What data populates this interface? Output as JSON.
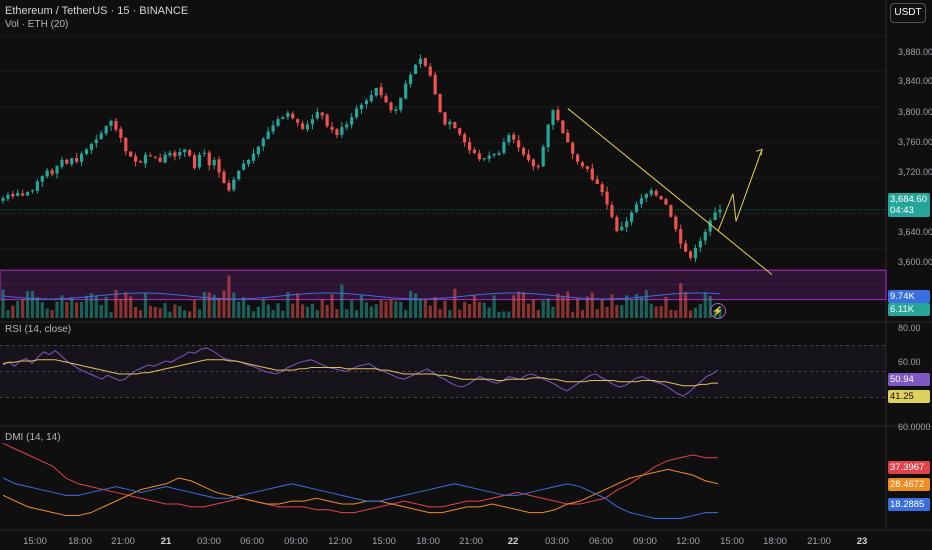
{
  "header": {
    "symbol_line": "Ethereum / TetherUS · 15 · BINANCE",
    "volume_label": "Vol · ETH (20)",
    "currency_button": "USDT"
  },
  "price_axis": {
    "labels": [
      "3,880.00",
      "3,840.00",
      "3,800.00",
      "3,760.00",
      "3,720.00",
      "3,640.00",
      "3,600.00"
    ],
    "current_price": "3,684.60",
    "countdown": "04:43",
    "vol_badge_1": "9.74K",
    "vol_badge_2": "6.11K"
  },
  "rsi": {
    "label": "RSI (14, close)",
    "axis_labels": [
      "80.00",
      "60.00"
    ],
    "value_badge": "50.94",
    "ma_badge": "41.25"
  },
  "dmi": {
    "label": "DMI (14, 14)",
    "axis_top": "60.0000",
    "plus_badge": "37.3967",
    "adx_badge": "28.4672",
    "minus_badge": "18.2885"
  },
  "time_axis": {
    "labels": [
      "15:00",
      "18:00",
      "21:00",
      "21",
      "03:00",
      "06:00",
      "09:00",
      "12:00",
      "15:00",
      "18:00",
      "21:00",
      "22",
      "03:00",
      "06:00",
      "09:00",
      "12:00",
      "15:00",
      "18:00",
      "21:00",
      "23"
    ]
  },
  "colors": {
    "up": "#26a69a",
    "down": "#ef5350",
    "support_zone": "#9c27b0",
    "trendline": "#e6d04a",
    "rsi_line": "#7e57c2",
    "rsi_ma": "#e0c060",
    "dmi_plus": "#e0424a",
    "dmi_adx": "#f08c1e",
    "dmi_minus": "#3a6fe0",
    "vol_ma": "#3a6fe0"
  },
  "chart_data": {
    "type": "candlestick",
    "symbol": "ETHUSDT",
    "interval": "15",
    "price_range": [
      3560,
      3920
    ],
    "support_zone": [
      3583,
      3616
    ],
    "trendline": [
      [
        3798,
        3611
      ]
    ],
    "projection_path": [
      3660,
      3702,
      3671,
      3752
    ],
    "closes": [
      3697,
      3701,
      3699,
      3703,
      3700,
      3704,
      3706,
      3716,
      3722,
      3728,
      3724,
      3733,
      3740,
      3736,
      3742,
      3738,
      3747,
      3752,
      3758,
      3763,
      3770,
      3778,
      3784,
      3774,
      3765,
      3750,
      3744,
      3738,
      3737,
      3746,
      3744,
      3743,
      3738,
      3746,
      3748,
      3744,
      3749,
      3752,
      3745,
      3731,
      3746,
      3748,
      3734,
      3740,
      3726,
      3714,
      3706,
      3718,
      3728,
      3736,
      3740,
      3747,
      3755,
      3764,
      3772,
      3779,
      3786,
      3788,
      3793,
      3787,
      3782,
      3775,
      3780,
      3786,
      3794,
      3790,
      3778,
      3774,
      3768,
      3777,
      3780,
      3788,
      3798,
      3802,
      3807,
      3813,
      3821,
      3813,
      3805,
      3796,
      3797,
      3810,
      3826,
      3836,
      3847,
      3854,
      3846,
      3835,
      3814,
      3794,
      3780,
      3783,
      3776,
      3769,
      3760,
      3751,
      3748,
      3741,
      3742,
      3745,
      3747,
      3748,
      3760,
      3768,
      3763,
      3754,
      3746,
      3740,
      3733,
      3733,
      3755,
      3780,
      3796,
      3785,
      3770,
      3760,
      3747,
      3738,
      3733,
      3730,
      3718,
      3713,
      3704,
      3690,
      3676,
      3660,
      3665,
      3671,
      3681,
      3690,
      3697,
      3702,
      3706,
      3700,
      3696,
      3690,
      3676,
      3662,
      3646,
      3637,
      3630,
      3641,
      3649,
      3659,
      3672,
      3681,
      3684
    ],
    "rsi": [
      55,
      57,
      54,
      58,
      60,
      56,
      61,
      65,
      63,
      66,
      62,
      58,
      55,
      52,
      50,
      48,
      46,
      44,
      47,
      45,
      43,
      44,
      48,
      51,
      53,
      55,
      54,
      56,
      58,
      57,
      60,
      62,
      65,
      64,
      67,
      68,
      66,
      63,
      60,
      59,
      58,
      57,
      55,
      54,
      52,
      50,
      49,
      48,
      50,
      53,
      55,
      57,
      58,
      59,
      57,
      55,
      53,
      52,
      51,
      50,
      52,
      54,
      55,
      56,
      53,
      51,
      49,
      47,
      45,
      44,
      46,
      48,
      50,
      52,
      49,
      46,
      44,
      41,
      39,
      38,
      40,
      43,
      46,
      44,
      42,
      41,
      43,
      46,
      45,
      44,
      47,
      48,
      46,
      44,
      42,
      40,
      37,
      35,
      38,
      41,
      44,
      47,
      48,
      45,
      43,
      40,
      38,
      39,
      42,
      45,
      46,
      44,
      42,
      41,
      39,
      36,
      33,
      31,
      34,
      38,
      42,
      46,
      48,
      51
    ],
    "rsi_ma": [
      56,
      57,
      57,
      58,
      58,
      58,
      59,
      59,
      59,
      59,
      58,
      57,
      56,
      55,
      54,
      53,
      52,
      51,
      50,
      49,
      48,
      48,
      48,
      48,
      49,
      49,
      50,
      51,
      52,
      53,
      54,
      55,
      56,
      57,
      58,
      59,
      59,
      59,
      59,
      58,
      58,
      57,
      56,
      55,
      54,
      53,
      52,
      51,
      51,
      51,
      51,
      52,
      52,
      53,
      53,
      53,
      53,
      53,
      53,
      52,
      52,
      52,
      52,
      52,
      52,
      51,
      51,
      50,
      49,
      48,
      48,
      48,
      48,
      48,
      48,
      47,
      47,
      46,
      45,
      44,
      44,
      44,
      44,
      44,
      44,
      43,
      43,
      44,
      44,
      44,
      44,
      45,
      45,
      45,
      44,
      44,
      43,
      42,
      42,
      42,
      42,
      43,
      43,
      43,
      43,
      43,
      42,
      42,
      42,
      42,
      43,
      43,
      43,
      42,
      42,
      41,
      40,
      39,
      39,
      39,
      40,
      40,
      41,
      41
    ],
    "dmi_plus": [
      42,
      40,
      38,
      36,
      34,
      30,
      28,
      27,
      26,
      25,
      24,
      23,
      22,
      21,
      21,
      20,
      20,
      21,
      22,
      23,
      22,
      21,
      20,
      20,
      20,
      19,
      19,
      18,
      18,
      19,
      20,
      21,
      22,
      21,
      20,
      20,
      21,
      22,
      22,
      23,
      24,
      25,
      24,
      23,
      22,
      21,
      21,
      22,
      23,
      26,
      28,
      31,
      34,
      36,
      37,
      38,
      37,
      37
    ],
    "dmi_adx": [
      24,
      22,
      20,
      19,
      18,
      17,
      17,
      18,
      20,
      22,
      24,
      26,
      27,
      28,
      30,
      29,
      27,
      25,
      24,
      23,
      22,
      21,
      21,
      22,
      22,
      23,
      22,
      21,
      21,
      22,
      22,
      21,
      20,
      19,
      18,
      18,
      19,
      20,
      20,
      21,
      20,
      19,
      18,
      18,
      19,
      21,
      22,
      24,
      26,
      28,
      30,
      31,
      32,
      33,
      32,
      31,
      29,
      28
    ],
    "dmi_minus": [
      30,
      28,
      27,
      26,
      25,
      24,
      24,
      25,
      26,
      27,
      26,
      25,
      26,
      27,
      26,
      25,
      24,
      23,
      23,
      24,
      25,
      26,
      27,
      28,
      27,
      26,
      25,
      24,
      23,
      22,
      22,
      23,
      24,
      25,
      26,
      27,
      28,
      27,
      26,
      25,
      24,
      24,
      25,
      26,
      27,
      28,
      27,
      25,
      23,
      20,
      18,
      17,
      16,
      16,
      16,
      17,
      18,
      18
    ]
  }
}
